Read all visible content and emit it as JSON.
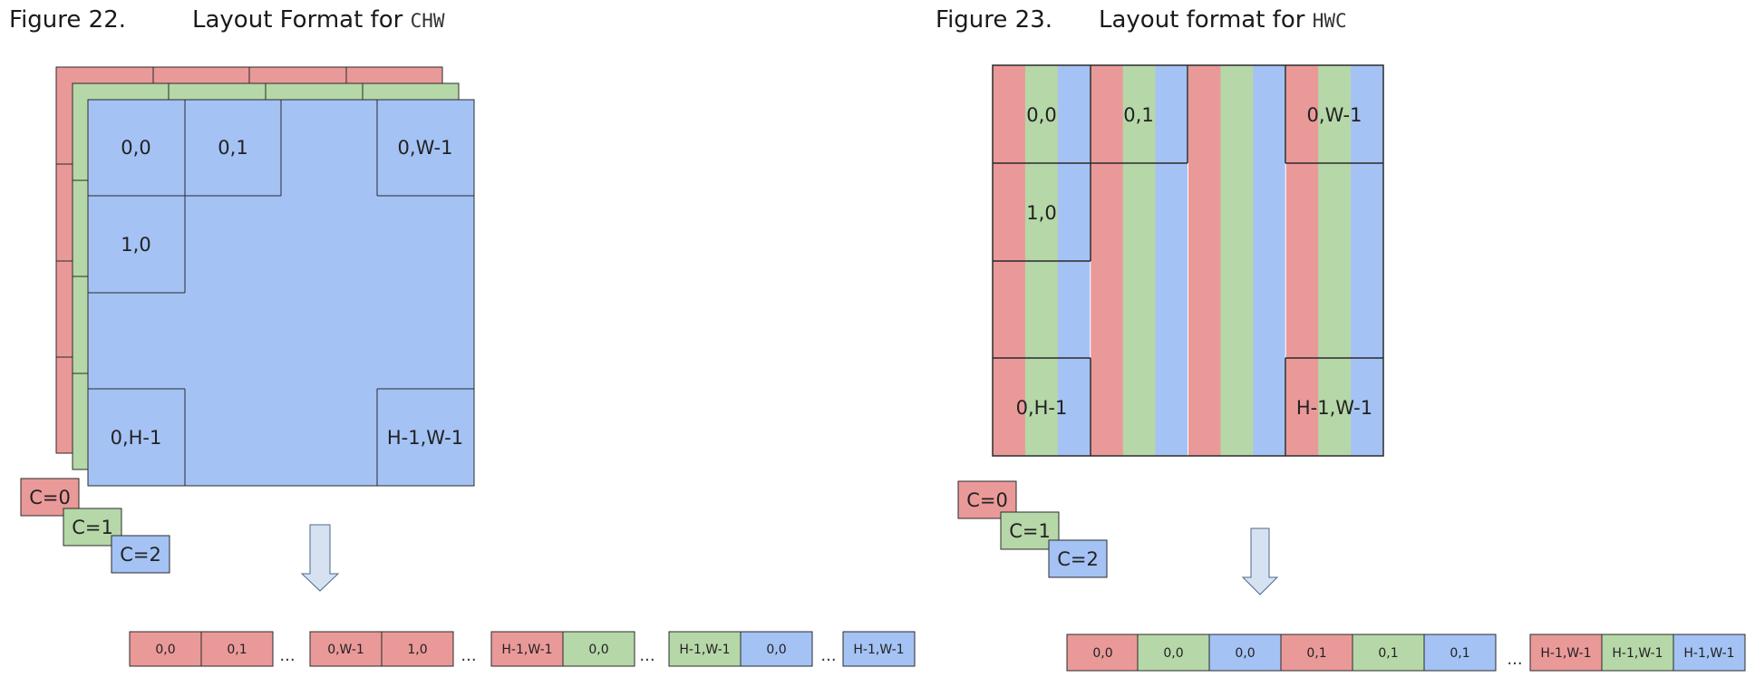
{
  "colors": {
    "red": "#ea9999",
    "green": "#b6d7a8",
    "blue": "#a4c2f4",
    "arrow": "#d6e2f2",
    "stroke": "#2b2b2b"
  },
  "figure22": {
    "number": "Figure 22.",
    "title": "Layout Format for ",
    "title_code": "CHW",
    "cells": {
      "r0c0": "0,0",
      "r0c1": "0,1",
      "r0cw": "0,W-1",
      "r1c0": "1,0",
      "rhc0": "0,H-1",
      "rhcw": "H-1,W-1"
    },
    "channel_legend": [
      "C=0",
      "C=1",
      "C=2"
    ],
    "sequence": [
      {
        "label": "0,0",
        "channel": 0
      },
      {
        "label": "0,1",
        "channel": 0
      },
      {
        "label": "...",
        "channel": null
      },
      {
        "label": "0,W-1",
        "channel": 0
      },
      {
        "label": "1,0",
        "channel": 0
      },
      {
        "label": "...",
        "channel": null
      },
      {
        "label": "H-1,W-1",
        "channel": 0
      },
      {
        "label": "0,0",
        "channel": 1
      },
      {
        "label": "...",
        "channel": null
      },
      {
        "label": "H-1,W-1",
        "channel": 1
      },
      {
        "label": "0,0",
        "channel": 2
      },
      {
        "label": "...",
        "channel": null
      },
      {
        "label": "H-1,W-1",
        "channel": 2
      }
    ]
  },
  "figure23": {
    "number": "Figure 23.",
    "title": "Layout format for ",
    "title_code": "HWC",
    "cells": {
      "r0c0": "0,0",
      "r0c1": "0,1",
      "r0cw": "0,W-1",
      "r1c0": "1,0",
      "rhc0": "0,H-1",
      "rhcw": "H-1,W-1"
    },
    "channel_legend": [
      "C=0",
      "C=1",
      "C=2"
    ],
    "sequence": [
      {
        "label": "0,0",
        "channel": 0
      },
      {
        "label": "0,0",
        "channel": 1
      },
      {
        "label": "0,0",
        "channel": 2
      },
      {
        "label": "0,1",
        "channel": 0
      },
      {
        "label": "0,1",
        "channel": 1
      },
      {
        "label": "0,1",
        "channel": 2
      },
      {
        "label": "...",
        "channel": null
      },
      {
        "label": "H-1,W-1",
        "channel": 0
      },
      {
        "label": "H-1,W-1",
        "channel": 1
      },
      {
        "label": "H-1,W-1",
        "channel": 2
      }
    ]
  }
}
